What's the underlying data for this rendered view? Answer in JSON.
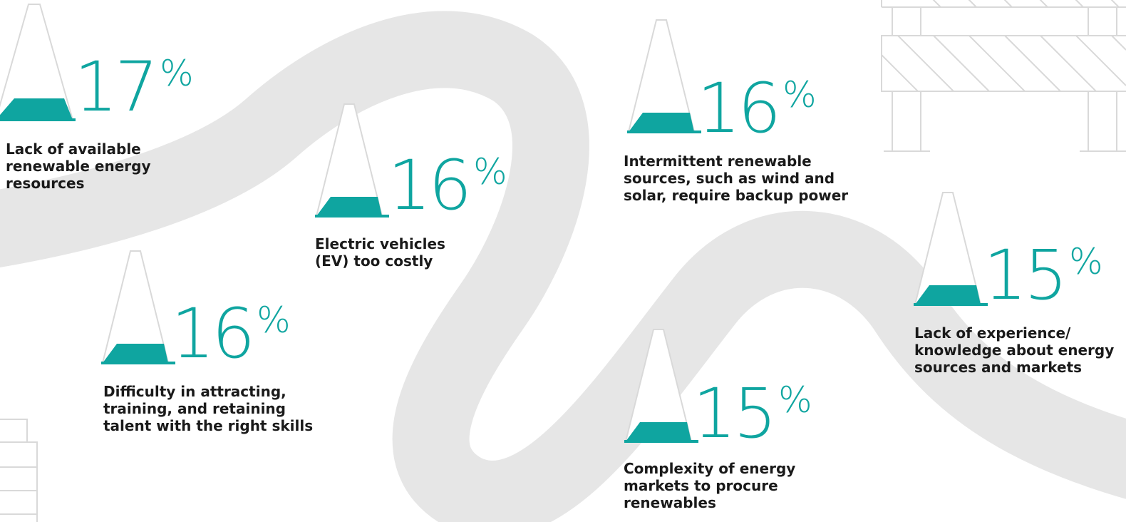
{
  "colors": {
    "accent": "#0fa5a0",
    "road": "#e6e6e6",
    "outline": "#d9d9d9",
    "text": "#1a1a1a"
  },
  "items": [
    {
      "value": "17",
      "unit": "%",
      "label": "Lack of available\nrenewable energy\nresources"
    },
    {
      "value": "16",
      "unit": "%",
      "label": "Electric vehicles\n(EV) too costly"
    },
    {
      "value": "16",
      "unit": "%",
      "label": "Difficulty in attracting,\ntraining, and retaining\ntalent with the right skills"
    },
    {
      "value": "16",
      "unit": "%",
      "label": "Intermittent renewable\nsources, such as wind and\nsolar, require backup power"
    },
    {
      "value": "15",
      "unit": "%",
      "label": "Complexity of energy\nmarkets to procure\nrenewables"
    },
    {
      "value": "15",
      "unit": "%",
      "label": "Lack of experience/\nknowledge about energy\nsources and markets"
    }
  ]
}
